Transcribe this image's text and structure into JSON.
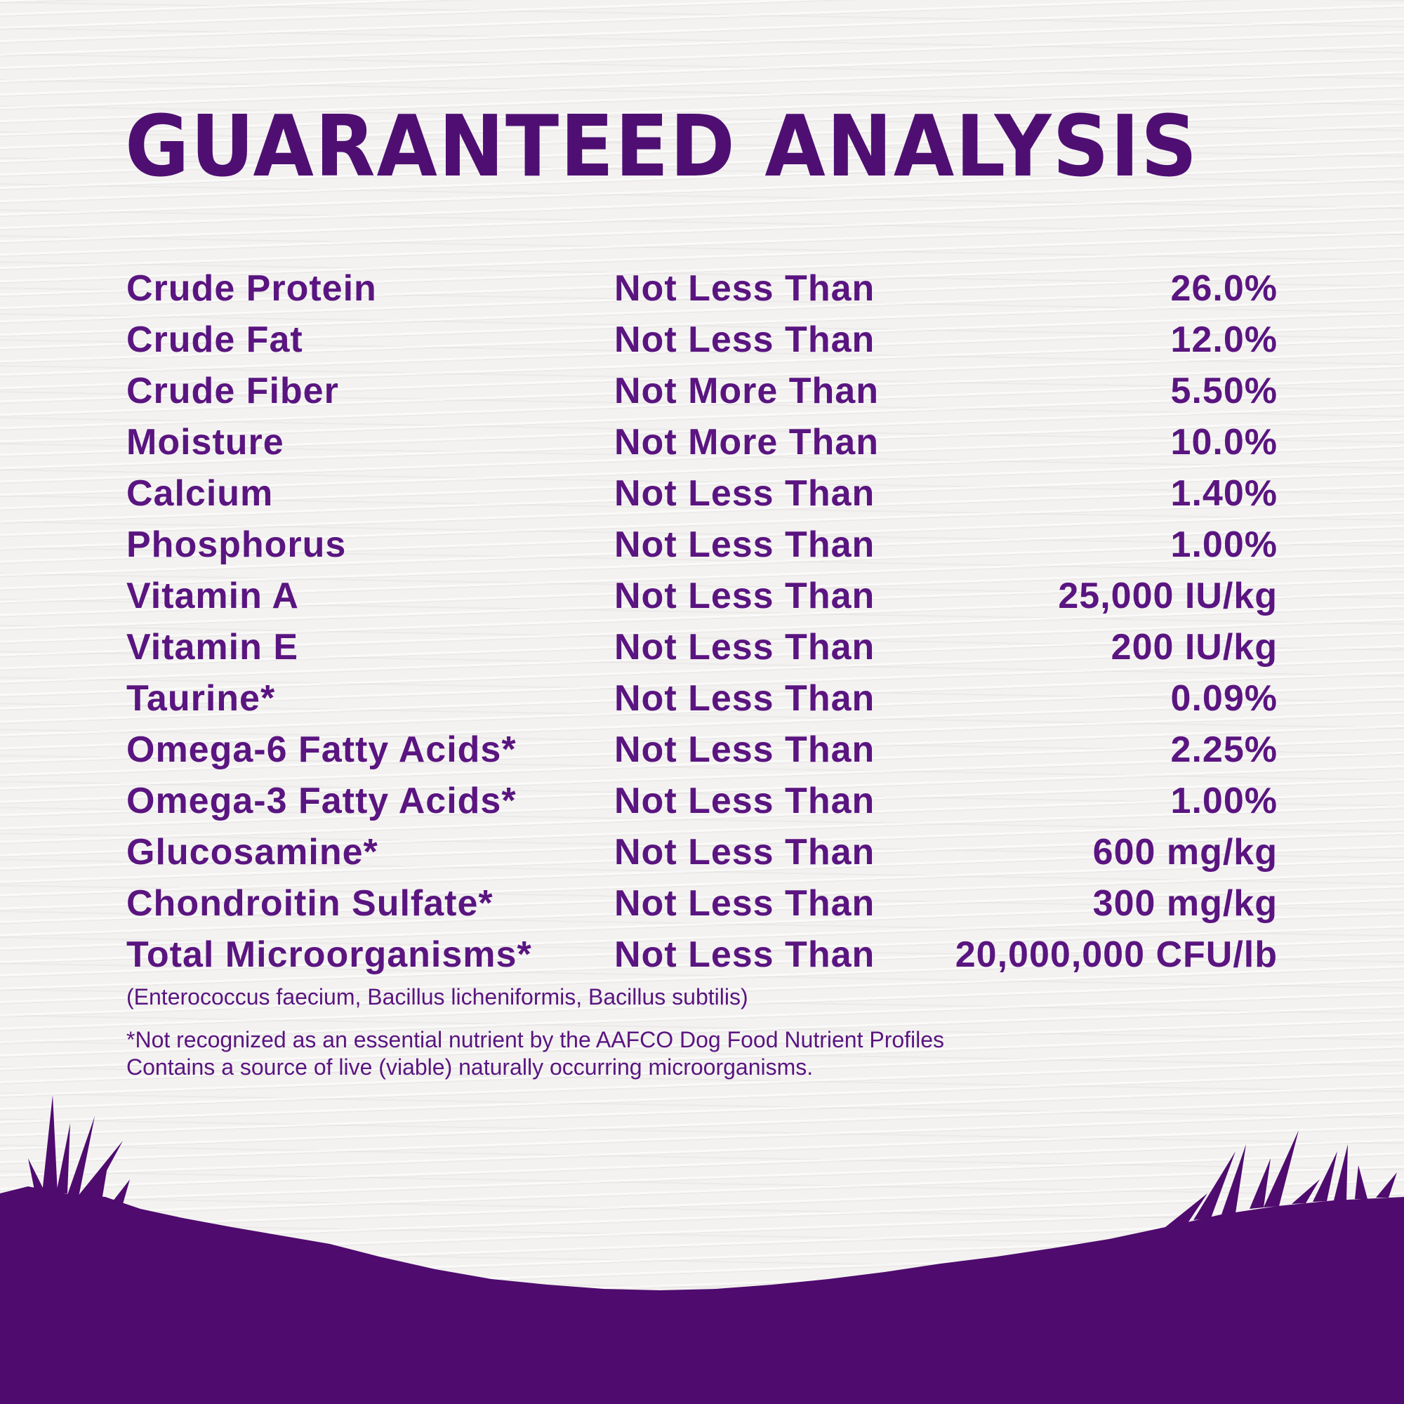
{
  "title": "GUARANTEED ANALYSIS",
  "rows": [
    {
      "nutrient": "Crude Protein",
      "qualifier": "Not Less Than",
      "value": "26.0%"
    },
    {
      "nutrient": "Crude Fat",
      "qualifier": "Not Less Than",
      "value": "12.0%"
    },
    {
      "nutrient": "Crude Fiber",
      "qualifier": "Not More Than",
      "value": "5.50%"
    },
    {
      "nutrient": "Moisture",
      "qualifier": "Not More Than",
      "value": "10.0%"
    },
    {
      "nutrient": "Calcium",
      "qualifier": "Not Less Than",
      "value": "1.40%"
    },
    {
      "nutrient": "Phosphorus",
      "qualifier": "Not Less Than",
      "value": "1.00%"
    },
    {
      "nutrient": "Vitamin A",
      "qualifier": "Not Less Than",
      "value": "25,000 IU/kg"
    },
    {
      "nutrient": "Vitamin E",
      "qualifier": "Not Less Than",
      "value": "200 IU/kg"
    },
    {
      "nutrient": "Taurine*",
      "qualifier": "Not Less Than",
      "value": "0.09%"
    },
    {
      "nutrient": "Omega-6 Fatty Acids*",
      "qualifier": "Not Less Than",
      "value": "2.25%"
    },
    {
      "nutrient": "Omega-3 Fatty Acids*",
      "qualifier": "Not Less Than",
      "value": "1.00%"
    },
    {
      "nutrient": "Glucosamine*",
      "qualifier": "Not Less Than",
      "value": "600 mg/kg"
    },
    {
      "nutrient": "Chondroitin Sulfate*",
      "qualifier": "Not Less Than",
      "value": "300 mg/kg"
    },
    {
      "nutrient": "Total Microorganisms*",
      "qualifier": "Not Less Than",
      "value": "20,000,000 CFU/lb"
    }
  ],
  "microorganisms_note": "(Enterococcus faecium, Bacillus licheniformis, Bacillus subtilis)",
  "footnote_line1": "*Not recognized as an essential nutrient by the AAFCO Dog Food Nutrient Profiles",
  "footnote_line2": "Contains a source of live (viable) naturally occurring microorganisms.",
  "colors": {
    "text": "#5a1580",
    "ground": "#4f0b6e",
    "background": "#f3f2f1"
  }
}
